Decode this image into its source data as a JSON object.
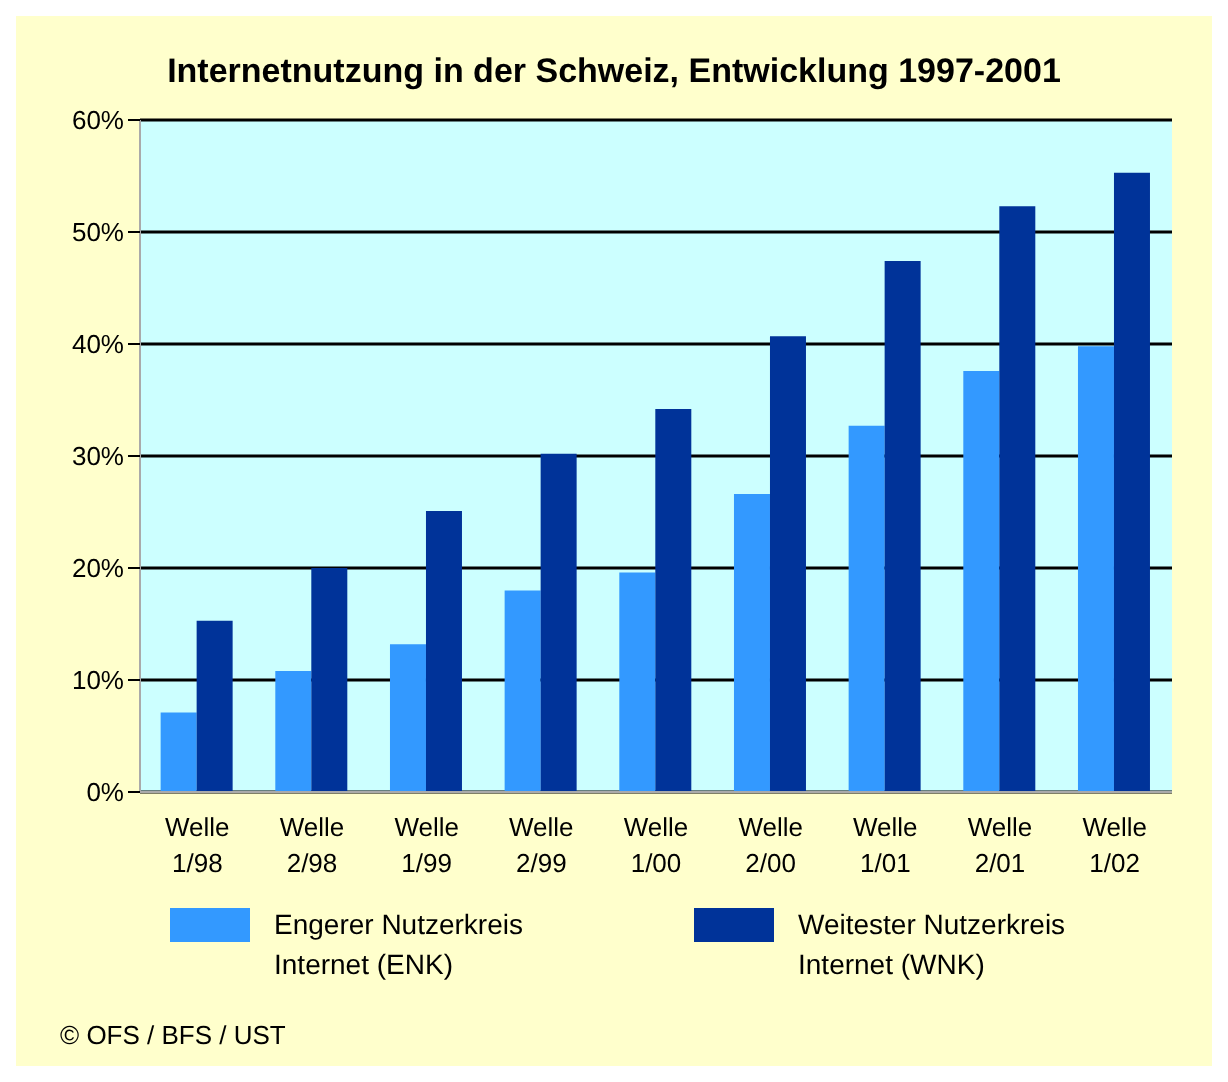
{
  "chart_data": {
    "type": "bar",
    "title": "Internetnutzung in der Schweiz, Entwicklung 1997-2001",
    "categories": [
      "Welle 1/98",
      "Welle 2/98",
      "Welle 1/99",
      "Welle 2/99",
      "Welle 1/00",
      "Welle 2/00",
      "Welle 1/01",
      "Welle 2/01",
      "Welle 1/02"
    ],
    "series": [
      {
        "name": "Engerer Nutzerkreis Internet (ENK)",
        "color": "#3399ff",
        "values": [
          7.1,
          10.8,
          13.2,
          18,
          19.6,
          26.6,
          32.7,
          37.6,
          39.8
        ]
      },
      {
        "name": "Weitester Nutzerkreis Internet (WNK)",
        "color": "#003399",
        "values": [
          15.3,
          20,
          25.1,
          30.2,
          34.2,
          40.7,
          47.4,
          52.3,
          55.3
        ]
      }
    ],
    "ylim": [
      0,
      60
    ],
    "yticks": [
      {
        "value": 0,
        "label": "0%"
      },
      {
        "value": 10,
        "label": "10%"
      },
      {
        "value": 20,
        "label": "20%"
      },
      {
        "value": 30,
        "label": "30%"
      },
      {
        "value": 40,
        "label": "40%"
      },
      {
        "value": 50,
        "label": "50%"
      },
      {
        "value": 60,
        "label": "60%"
      }
    ],
    "grid": "y",
    "legend": "bottom",
    "annotations": [
      "© OFS / BFS / UST"
    ]
  }
}
